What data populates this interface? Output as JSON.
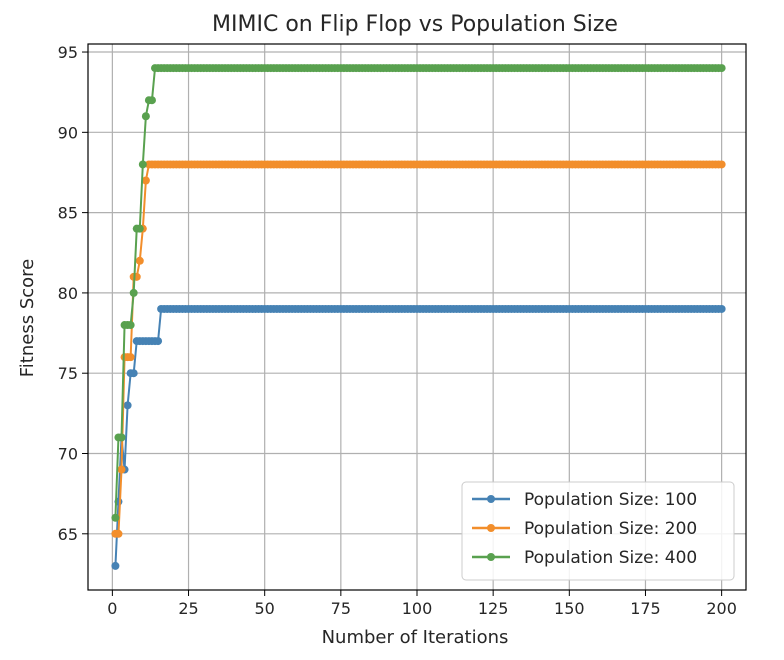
{
  "chart_data": {
    "type": "line",
    "title": "MIMIC on Flip Flop vs Population Size",
    "xlabel": "Number of Iterations",
    "ylabel": "Fitness Score",
    "xlim": [
      -8,
      208
    ],
    "ylim": [
      61.5,
      95.5
    ],
    "x_ticks": [
      0,
      25,
      50,
      75,
      100,
      125,
      150,
      175,
      200
    ],
    "y_ticks": [
      65,
      70,
      75,
      80,
      85,
      90,
      95
    ],
    "x_tick_labels": [
      "0",
      "25",
      "50",
      "75",
      "100",
      "125",
      "150",
      "175",
      "200"
    ],
    "y_tick_labels": [
      "65",
      "70",
      "75",
      "80",
      "85",
      "90",
      "95"
    ],
    "grid": true,
    "legend_position": "lower-right",
    "series": [
      {
        "name": "Population Size: 100",
        "color": "#4682b4",
        "change_points": [
          [
            1,
            63
          ],
          [
            2,
            67
          ],
          [
            3,
            71
          ],
          [
            4,
            69
          ],
          [
            5,
            73
          ],
          [
            6,
            75
          ],
          [
            7,
            75
          ],
          [
            8,
            77
          ],
          [
            15,
            77
          ],
          [
            16,
            79
          ]
        ],
        "last_x": 200
      },
      {
        "name": "Population Size: 200",
        "color": "#f28e2b",
        "change_points": [
          [
            1,
            65
          ],
          [
            2,
            65
          ],
          [
            3,
            69
          ],
          [
            4,
            76
          ],
          [
            5,
            76
          ],
          [
            6,
            76
          ],
          [
            7,
            81
          ],
          [
            8,
            81
          ],
          [
            9,
            82
          ],
          [
            10,
            84
          ],
          [
            11,
            87
          ],
          [
            12,
            88
          ]
        ],
        "last_x": 200
      },
      {
        "name": "Population Size: 400",
        "color": "#59a14f",
        "change_points": [
          [
            1,
            66
          ],
          [
            2,
            71
          ],
          [
            3,
            71
          ],
          [
            4,
            78
          ],
          [
            5,
            78
          ],
          [
            6,
            78
          ],
          [
            7,
            80
          ],
          [
            8,
            84
          ],
          [
            9,
            84
          ],
          [
            10,
            88
          ],
          [
            11,
            91
          ],
          [
            12,
            92
          ],
          [
            13,
            92
          ],
          [
            14,
            94
          ]
        ],
        "last_x": 200
      }
    ]
  }
}
